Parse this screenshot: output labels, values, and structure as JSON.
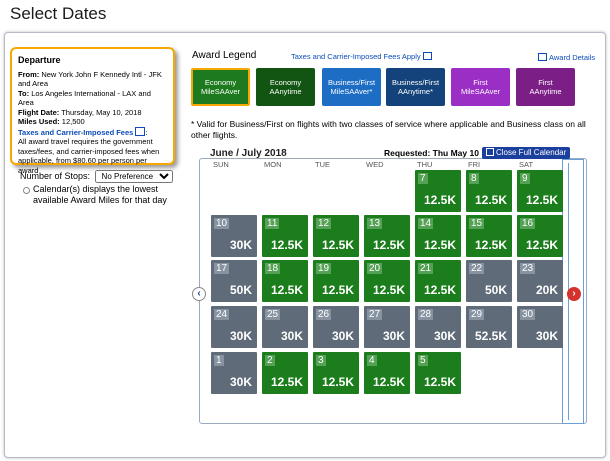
{
  "page": {
    "title": "Select Dates"
  },
  "departure": {
    "heading": "Departure",
    "from_label": "From:",
    "from": "New York John F Kennedy Intl - JFK and Area",
    "to_label": "To:",
    "to": "Los Angeles International - LAX and Area",
    "date_label": "Flight Date:",
    "date": "Thursday, May 10, 2018",
    "miles_label": "Miles Used:",
    "miles": "12,500",
    "fees_link": "Taxes and Carrier-Imposed Fees",
    "fees_note": "All award travel requires the government taxes/fees, and carrier-imposed fees when applicable, from $80.60 per person per award"
  },
  "stops": {
    "label": "Number of Stops:",
    "selected": "No Preference"
  },
  "lowest_note": "Calendar(s) displays the lowest available Award Miles for that day",
  "legend": {
    "title": "Award Legend",
    "taxes_link": "Taxes and Carrier-Imposed Fees Apply",
    "details_link": "Award Details",
    "items": [
      {
        "line1": "Economy",
        "line2": "MileSAAver",
        "color": "#1e7a1e"
      },
      {
        "line1": "Economy",
        "line2": "AAnytime",
        "color": "#125412"
      },
      {
        "line1": "Business/First",
        "line2": "MileSAAver*",
        "color": "#1d6dc4"
      },
      {
        "line1": "Business/First",
        "line2": "AAnytime*",
        "color": "#14427a"
      },
      {
        "line1": "First",
        "line2": "MileSAAver",
        "color": "#9a2ec5"
      },
      {
        "line1": "First",
        "line2": "AAnytime",
        "color": "#7b1f86"
      }
    ]
  },
  "note": "* Valid for Business/First on flights with two classes of service where applicable and Business class on all other flights.",
  "calendar": {
    "month_title": "June / July 2018",
    "requested": "Requested: Thu May 10",
    "close_label": "Close Full Calendar",
    "days_of_week": [
      "SUN",
      "MON",
      "TUE",
      "WED",
      "THU",
      "FRI",
      "SAT"
    ],
    "prev_icon": "chevron-left-icon",
    "next_icon": "chevron-right-icon",
    "weeks": [
      [
        null,
        null,
        null,
        null,
        {
          "d": "7",
          "v": "12.5K",
          "t": "g"
        },
        {
          "d": "8",
          "v": "12.5K",
          "t": "g"
        },
        {
          "d": "9",
          "v": "12.5K",
          "t": "g"
        }
      ],
      [
        {
          "d": "10",
          "v": "30K",
          "t": "s"
        },
        {
          "d": "11",
          "v": "12.5K",
          "t": "g"
        },
        {
          "d": "12",
          "v": "12.5K",
          "t": "g"
        },
        {
          "d": "13",
          "v": "12.5K",
          "t": "g"
        },
        {
          "d": "14",
          "v": "12.5K",
          "t": "g"
        },
        {
          "d": "15",
          "v": "12.5K",
          "t": "g"
        },
        {
          "d": "16",
          "v": "12.5K",
          "t": "g"
        }
      ],
      [
        {
          "d": "17",
          "v": "50K",
          "t": "s"
        },
        {
          "d": "18",
          "v": "12.5K",
          "t": "g"
        },
        {
          "d": "19",
          "v": "12.5K",
          "t": "g"
        },
        {
          "d": "20",
          "v": "12.5K",
          "t": "g"
        },
        {
          "d": "21",
          "v": "12.5K",
          "t": "g"
        },
        {
          "d": "22",
          "v": "50K",
          "t": "s"
        },
        {
          "d": "23",
          "v": "20K",
          "t": "s"
        }
      ],
      [
        {
          "d": "24",
          "v": "30K",
          "t": "s"
        },
        {
          "d": "25",
          "v": "30K",
          "t": "s"
        },
        {
          "d": "26",
          "v": "30K",
          "t": "s"
        },
        {
          "d": "27",
          "v": "30K",
          "t": "s"
        },
        {
          "d": "28",
          "v": "30K",
          "t": "s"
        },
        {
          "d": "29",
          "v": "52.5K",
          "t": "s"
        },
        {
          "d": "30",
          "v": "30K",
          "t": "s"
        }
      ],
      [
        {
          "d": "1",
          "v": "30K",
          "t": "s"
        },
        {
          "d": "2",
          "v": "12.5K",
          "t": "g"
        },
        {
          "d": "3",
          "v": "12.5K",
          "t": "g"
        },
        {
          "d": "4",
          "v": "12.5K",
          "t": "g"
        },
        {
          "d": "5",
          "v": "12.5K",
          "t": "g"
        },
        null,
        null
      ]
    ]
  }
}
